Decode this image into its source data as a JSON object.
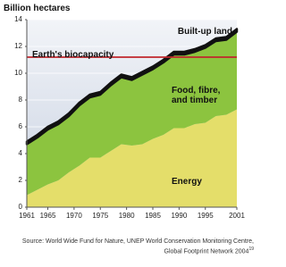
{
  "chart_data": {
    "type": "stacked-area",
    "y_label": "Billion hectares",
    "x": [
      1961,
      1963,
      1965,
      1967,
      1969,
      1971,
      1973,
      1975,
      1977,
      1979,
      1981,
      1983,
      1985,
      1987,
      1989,
      1991,
      1993,
      1995,
      1997,
      1999,
      2001
    ],
    "series": [
      {
        "name": "Energy",
        "color": "#e4de6a",
        "values": [
          0.9,
          1.3,
          1.7,
          2.0,
          2.6,
          3.1,
          3.7,
          3.7,
          4.2,
          4.7,
          4.6,
          4.7,
          5.1,
          5.4,
          5.9,
          5.9,
          6.2,
          6.3,
          6.8,
          6.9,
          7.3
        ]
      },
      {
        "name": "Food, fibre, and timber",
        "color": "#8cc43f",
        "values": [
          3.8,
          3.9,
          4.1,
          4.2,
          4.2,
          4.5,
          4.5,
          4.7,
          4.9,
          5.0,
          4.9,
          5.2,
          5.2,
          5.4,
          5.5,
          5.5,
          5.4,
          5.6,
          5.6,
          5.6,
          5.8
        ]
      },
      {
        "name": "Built-up land",
        "color": "#111111",
        "values": [
          0.2,
          0.2,
          0.2,
          0.2,
          0.2,
          0.2,
          0.2,
          0.2,
          0.2,
          0.2,
          0.2,
          0.2,
          0.2,
          0.2,
          0.2,
          0.2,
          0.2,
          0.2,
          0.2,
          0.2,
          0.2
        ]
      }
    ],
    "reference_lines": [
      {
        "label": "Earth's biocapacity",
        "value": 11.2,
        "color": "#c0272d"
      }
    ],
    "xlim": [
      1961,
      2001
    ],
    "xticks": [
      1961,
      1965,
      1970,
      1975,
      1980,
      1985,
      1990,
      1995,
      2001
    ],
    "ylim": [
      0,
      14
    ],
    "yticks": [
      0,
      2,
      4,
      6,
      8,
      10,
      12,
      14
    ],
    "grid": true,
    "source": "Source: World Wide Fund for Nature, UNEP World Conservation Monitoring Centre, Global Footprint Network 2004",
    "source_note": "19"
  }
}
